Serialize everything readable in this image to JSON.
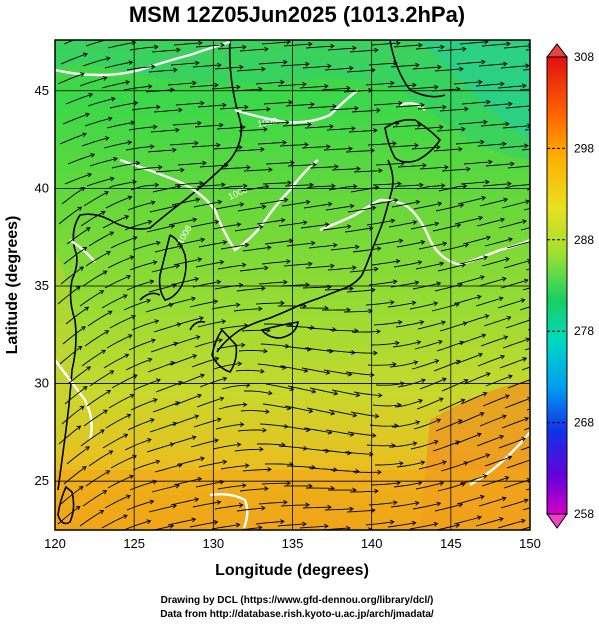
{
  "title": "MSM 12Z05Jun2025 (1013.2hPa)",
  "x_axis": {
    "label": "Longitude (degrees)",
    "range": [
      120,
      150
    ],
    "ticks": [
      "120",
      "125",
      "130",
      "135",
      "140",
      "145",
      "150"
    ]
  },
  "y_axis": {
    "label": "Latitude  (degrees)",
    "range": [
      22.5,
      47.6
    ],
    "ticks": [
      "25",
      "30",
      "35",
      "40",
      "45"
    ]
  },
  "colorbar": {
    "range": [
      258,
      308
    ],
    "ticks": [
      "308",
      "298",
      "288",
      "278",
      "268",
      "258"
    ],
    "colors": [
      "#ff2aa0",
      "#d000c8",
      "#6a00d8",
      "#1030e8",
      "#00a0f0",
      "#00d8c0",
      "#18d060",
      "#40e020",
      "#a0e030",
      "#e8e020",
      "#ffb000",
      "#ff6000",
      "#e01010"
    ]
  },
  "contour_labels": [
    "1008",
    "1008",
    "1008"
  ],
  "credits": {
    "line1": "Drawing by DCL (https://www.gfd-dennou.org/library/dcl/)",
    "line2": "Data from http://database.rish.kyoto-u.ac.jp/arch/jmadata/"
  }
}
